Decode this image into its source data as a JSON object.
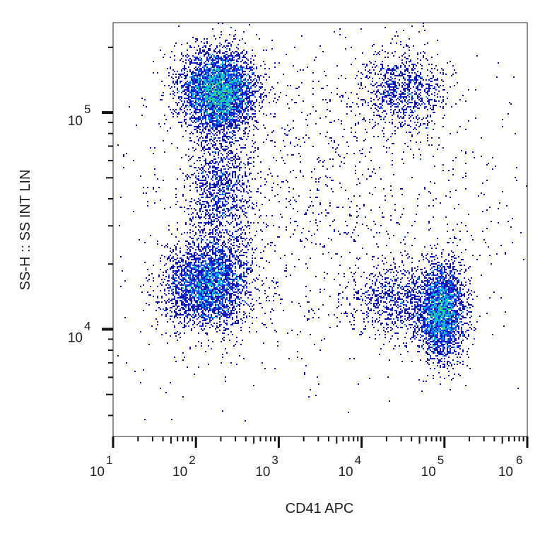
{
  "chart_data": {
    "type": "scatter",
    "subtype": "density-dot-plot",
    "xlabel": "CD41 APC",
    "ylabel": "SS-H :: SS INT LIN",
    "x_scale": "log",
    "y_scale": "log",
    "xlim": [
      10,
      1000000
    ],
    "ylim": [
      3200,
      260000
    ],
    "x_ticks": [
      {
        "base": "10",
        "exp": "1",
        "value": 10
      },
      {
        "base": "10",
        "exp": "2",
        "value": 100
      },
      {
        "base": "10",
        "exp": "3",
        "value": 1000
      },
      {
        "base": "10",
        "exp": "4",
        "value": 10000
      },
      {
        "base": "10",
        "exp": "5",
        "value": 100000
      },
      {
        "base": "10",
        "exp": "6",
        "value": 1000000
      }
    ],
    "y_ticks": [
      {
        "base": "10",
        "exp": "4",
        "value": 10000
      },
      {
        "base": "10",
        "exp": "5",
        "value": 100000
      }
    ],
    "populations": [
      {
        "x": 190,
        "y": 126000,
        "x_spread_log": 0.22,
        "y_spread_log": 0.09,
        "count": 4200
      },
      {
        "x": 140,
        "y": 16000,
        "x_spread_log": 0.25,
        "y_spread_log": 0.1,
        "count": 3000
      },
      {
        "x": 200,
        "y": 45000,
        "x_spread_log": 0.2,
        "y_spread_log": 0.17,
        "count": 1300
      },
      {
        "x": 32000,
        "y": 126000,
        "x_spread_log": 0.25,
        "y_spread_log": 0.09,
        "count": 900
      },
      {
        "x": 93000,
        "y": 12000,
        "x_spread_log": 0.14,
        "y_spread_log": 0.11,
        "count": 2800
      },
      {
        "x": 26000,
        "y": 14000,
        "x_spread_log": 0.28,
        "y_spread_log": 0.09,
        "count": 800
      },
      {
        "x": 3000,
        "y": 40000,
        "x_spread_log": 1.3,
        "y_spread_log": 0.4,
        "count": 1400
      }
    ],
    "color_scale": [
      "#1010b0",
      "#1a40ff",
      "#00b0ff",
      "#20d0a0",
      "#60e040",
      "#d0e010",
      "#ffa000",
      "#ff3000",
      "#e00000"
    ],
    "grid": false,
    "legend": "none"
  }
}
